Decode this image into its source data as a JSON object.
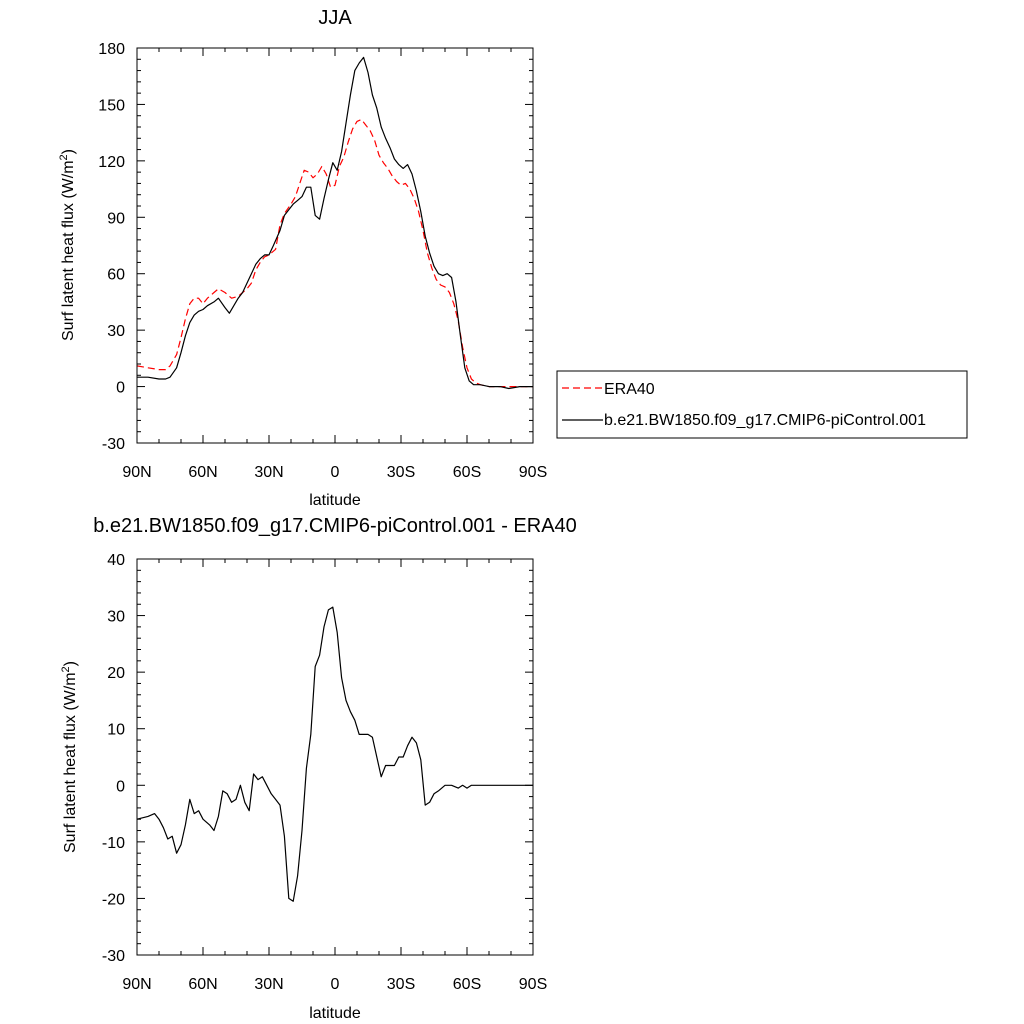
{
  "chart_data": [
    {
      "type": "line",
      "title": "JJA",
      "xlabel": "latitude",
      "ylabel_main": "Surf latent heat flux (W/m",
      "ylabel_sup": "2",
      "ylabel_close": ")",
      "xlim": [
        90,
        -90
      ],
      "ylim": [
        -30,
        180
      ],
      "yticks": [
        -30,
        0,
        30,
        60,
        90,
        120,
        150,
        180
      ],
      "xticks": [
        {
          "value": 90,
          "label": "90N"
        },
        {
          "value": 60,
          "label": "60N"
        },
        {
          "value": 30,
          "label": "30N"
        },
        {
          "value": 0,
          "label": "0"
        },
        {
          "value": -30,
          "label": "30S"
        },
        {
          "value": -60,
          "label": "60S"
        },
        {
          "value": -90,
          "label": "90S"
        }
      ],
      "legend_placement": "right",
      "series": [
        {
          "name": "ERA40",
          "color": "#ff0000",
          "dash": "dashed",
          "points": [
            [
              90,
              11
            ],
            [
              85,
              10
            ],
            [
              80,
              9
            ],
            [
              77,
              9
            ],
            [
              75,
              11
            ],
            [
              72,
              17
            ],
            [
              70,
              26
            ],
            [
              68,
              36
            ],
            [
              66,
              44
            ],
            [
              64,
              47
            ],
            [
              62,
              47
            ],
            [
              60,
              44
            ],
            [
              58,
              47
            ],
            [
              55,
              50
            ],
            [
              53,
              52
            ],
            [
              50,
              50
            ],
            [
              47,
              47
            ],
            [
              44,
              48
            ],
            [
              42,
              50
            ],
            [
              40,
              52
            ],
            [
              38,
              55
            ],
            [
              36,
              62
            ],
            [
              34,
              66
            ],
            [
              32,
              69
            ],
            [
              30,
              70
            ],
            [
              27,
              73
            ],
            [
              25,
              86
            ],
            [
              23,
              92
            ],
            [
              20,
              97
            ],
            [
              18,
              101
            ],
            [
              16,
              108
            ],
            [
              14,
              115
            ],
            [
              12,
              114
            ],
            [
              10,
              111
            ],
            [
              8,
              113
            ],
            [
              6,
              117
            ],
            [
              4,
              113
            ],
            [
              2,
              106
            ],
            [
              0,
              107
            ],
            [
              -2,
              117
            ],
            [
              -4,
              122
            ],
            [
              -6,
              130
            ],
            [
              -8,
              137
            ],
            [
              -10,
              141
            ],
            [
              -12,
              142
            ],
            [
              -14,
              139
            ],
            [
              -16,
              136
            ],
            [
              -18,
              131
            ],
            [
              -20,
              123
            ],
            [
              -22,
              119
            ],
            [
              -24,
              116
            ],
            [
              -26,
              112
            ],
            [
              -28,
              109
            ],
            [
              -30,
              107
            ],
            [
              -32,
              108
            ],
            [
              -34,
              105
            ],
            [
              -36,
              100
            ],
            [
              -38,
              93
            ],
            [
              -40,
              83
            ],
            [
              -42,
              71
            ],
            [
              -44,
              63
            ],
            [
              -46,
              57
            ],
            [
              -48,
              54
            ],
            [
              -50,
              53
            ],
            [
              -52,
              50
            ],
            [
              -54,
              44
            ],
            [
              -56,
              35
            ],
            [
              -58,
              21
            ],
            [
              -60,
              10
            ],
            [
              -62,
              4
            ],
            [
              -64,
              2
            ],
            [
              -66,
              1
            ],
            [
              -70,
              0
            ],
            [
              -75,
              0
            ],
            [
              -80,
              0
            ],
            [
              -85,
              0
            ],
            [
              -90,
              0
            ]
          ]
        },
        {
          "name": "b.e21.BW1850.f09_g17.CMIP6-piControl.001",
          "color": "#000000",
          "dash": "solid",
          "points": [
            [
              90,
              5
            ],
            [
              85,
              5
            ],
            [
              80,
              4
            ],
            [
              77,
              4
            ],
            [
              75,
              5
            ],
            [
              72,
              10
            ],
            [
              70,
              18
            ],
            [
              68,
              27
            ],
            [
              66,
              34
            ],
            [
              64,
              38
            ],
            [
              62,
              40
            ],
            [
              60,
              41
            ],
            [
              58,
              43
            ],
            [
              55,
              45
            ],
            [
              53,
              47
            ],
            [
              50,
              42
            ],
            [
              48,
              39
            ],
            [
              46,
              43
            ],
            [
              44,
              47
            ],
            [
              42,
              50
            ],
            [
              40,
              55
            ],
            [
              38,
              60
            ],
            [
              36,
              65
            ],
            [
              34,
              68
            ],
            [
              32,
              70
            ],
            [
              30,
              70
            ],
            [
              28,
              75
            ],
            [
              25,
              83
            ],
            [
              23,
              91
            ],
            [
              21,
              94
            ],
            [
              19,
              97
            ],
            [
              17,
              99
            ],
            [
              15,
              101
            ],
            [
              13,
              106
            ],
            [
              11,
              106
            ],
            [
              9,
              91
            ],
            [
              7,
              89
            ],
            [
              5,
              100
            ],
            [
              3,
              110
            ],
            [
              1,
              119
            ],
            [
              -1,
              115
            ],
            [
              -3,
              125
            ],
            [
              -5,
              140
            ],
            [
              -7,
              155
            ],
            [
              -9,
              168
            ],
            [
              -11,
              172
            ],
            [
              -13,
              175
            ],
            [
              -15,
              167
            ],
            [
              -17,
              155
            ],
            [
              -19,
              148
            ],
            [
              -21,
              138
            ],
            [
              -23,
              132
            ],
            [
              -25,
              127
            ],
            [
              -27,
              121
            ],
            [
              -29,
              118
            ],
            [
              -31,
              116
            ],
            [
              -33,
              118
            ],
            [
              -35,
              113
            ],
            [
              -37,
              104
            ],
            [
              -39,
              93
            ],
            [
              -41,
              80
            ],
            [
              -43,
              71
            ],
            [
              -45,
              64
            ],
            [
              -47,
              60
            ],
            [
              -49,
              59
            ],
            [
              -51,
              60
            ],
            [
              -53,
              58
            ],
            [
              -55,
              45
            ],
            [
              -57,
              27
            ],
            [
              -59,
              10
            ],
            [
              -61,
              3
            ],
            [
              -63,
              1
            ],
            [
              -66,
              1
            ],
            [
              -70,
              0
            ],
            [
              -75,
              0
            ],
            [
              -79,
              -1
            ],
            [
              -84,
              0
            ],
            [
              -90,
              0
            ]
          ]
        }
      ]
    },
    {
      "type": "line",
      "title": "b.e21.BW1850.f09_g17.CMIP6-piControl.001 - ERA40",
      "xlabel": "latitude",
      "ylabel_main": "Surf latent heat flux (W/m",
      "ylabel_sup": "2",
      "ylabel_close": ")",
      "xlim": [
        90,
        -90
      ],
      "ylim": [
        -30,
        40
      ],
      "yticks": [
        -30,
        -20,
        -10,
        0,
        10,
        20,
        30,
        40
      ],
      "xticks": [
        {
          "value": 90,
          "label": "90N"
        },
        {
          "value": 60,
          "label": "60N"
        },
        {
          "value": 30,
          "label": "30N"
        },
        {
          "value": 0,
          "label": "0"
        },
        {
          "value": -30,
          "label": "30S"
        },
        {
          "value": -60,
          "label": "60S"
        },
        {
          "value": -90,
          "label": "90S"
        }
      ],
      "series": [
        {
          "color": "#000000",
          "dash": "solid",
          "points": [
            [
              90,
              -6
            ],
            [
              85,
              -5.5
            ],
            [
              82,
              -5
            ],
            [
              80,
              -6
            ],
            [
              78,
              -7.5
            ],
            [
              76,
              -9.5
            ],
            [
              74,
              -9
            ],
            [
              72,
              -12
            ],
            [
              70,
              -10.5
            ],
            [
              68,
              -7
            ],
            [
              66,
              -2.5
            ],
            [
              64,
              -5
            ],
            [
              62,
              -4.5
            ],
            [
              60,
              -6
            ],
            [
              57,
              -7
            ],
            [
              55,
              -8
            ],
            [
              53,
              -5.5
            ],
            [
              51,
              -1
            ],
            [
              49,
              -1.5
            ],
            [
              47,
              -3
            ],
            [
              45,
              -2.5
            ],
            [
              43,
              0
            ],
            [
              41,
              -3
            ],
            [
              39,
              -4.5
            ],
            [
              37,
              2
            ],
            [
              35,
              1
            ],
            [
              33,
              1.5
            ],
            [
              31,
              0
            ],
            [
              29,
              -1.5
            ],
            [
              27,
              -2.5
            ],
            [
              25,
              -3.5
            ],
            [
              23,
              -9
            ],
            [
              21,
              -20
            ],
            [
              19,
              -20.5
            ],
            [
              17,
              -16
            ],
            [
              15,
              -8
            ],
            [
              13,
              3
            ],
            [
              11,
              9
            ],
            [
              9,
              21
            ],
            [
              7,
              23
            ],
            [
              5,
              28
            ],
            [
              3,
              31
            ],
            [
              1,
              31.5
            ],
            [
              -1,
              27
            ],
            [
              -3,
              19
            ],
            [
              -5,
              15
            ],
            [
              -7,
              13
            ],
            [
              -9,
              11.5
            ],
            [
              -11,
              9
            ],
            [
              -13,
              9
            ],
            [
              -15,
              9
            ],
            [
              -17,
              8.5
            ],
            [
              -19,
              5
            ],
            [
              -21,
              1.5
            ],
            [
              -23,
              3.5
            ],
            [
              -25,
              3.5
            ],
            [
              -27,
              3.5
            ],
            [
              -29,
              5
            ],
            [
              -31,
              5
            ],
            [
              -33,
              7
            ],
            [
              -35,
              8.5
            ],
            [
              -37,
              7.5
            ],
            [
              -39,
              4.5
            ],
            [
              -41,
              -3.5
            ],
            [
              -43,
              -3
            ],
            [
              -45,
              -1.5
            ],
            [
              -47,
              -1
            ],
            [
              -50,
              0
            ],
            [
              -53,
              0
            ],
            [
              -56,
              -0.5
            ],
            [
              -58,
              0
            ],
            [
              -60,
              -0.5
            ],
            [
              -62,
              0
            ],
            [
              -65,
              0
            ],
            [
              -90,
              0
            ]
          ]
        }
      ]
    }
  ]
}
